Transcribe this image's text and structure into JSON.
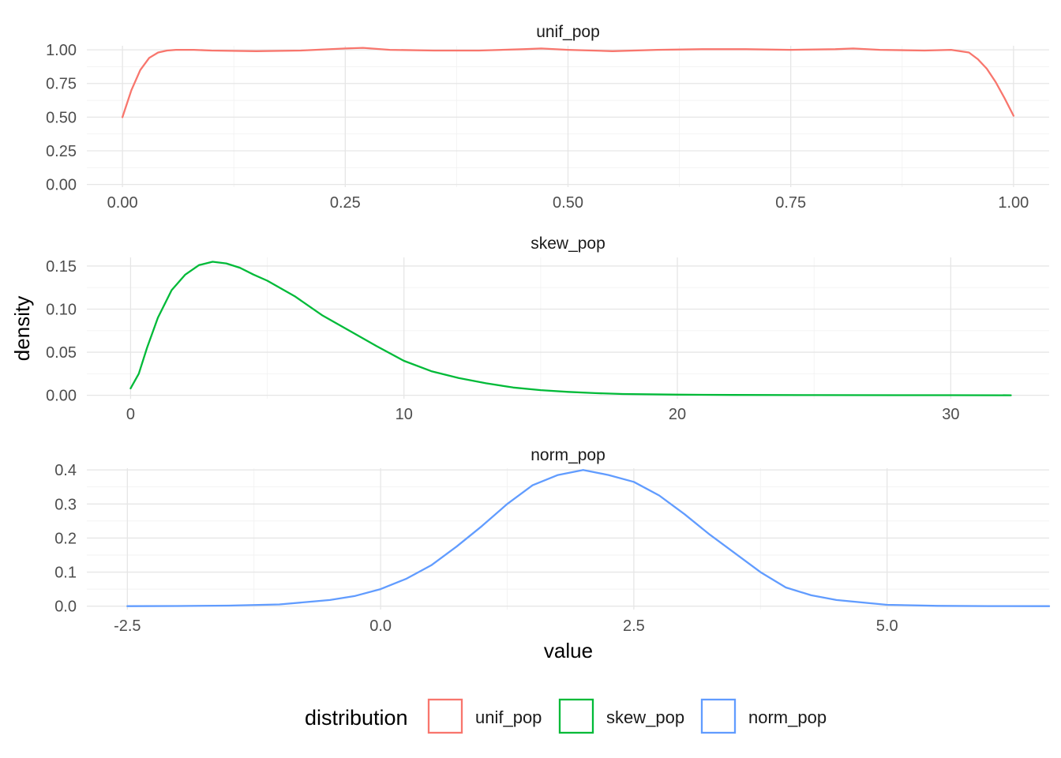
{
  "chart_data": {
    "type": "line",
    "title": "",
    "xlabel": "value",
    "ylabel": "density",
    "legend": {
      "title": "distribution",
      "position": "bottom",
      "entries": [
        {
          "label": "unif_pop",
          "color": "#F8766D"
        },
        {
          "label": "skew_pop",
          "color": "#00BA38"
        },
        {
          "label": "norm_pop",
          "color": "#619CFF"
        }
      ]
    },
    "facets": [
      {
        "name": "unif_pop",
        "color": "#F8766D",
        "xlim": [
          -0.04,
          1.04
        ],
        "ylim": [
          -0.02,
          1.03
        ],
        "x_ticks": [
          0,
          0.25,
          0.5,
          0.75,
          1.0
        ],
        "x_tick_labels": [
          "0.00",
          "0.25",
          "0.50",
          "0.75",
          "1.00"
        ],
        "y_ticks": [
          0,
          0.25,
          0.5,
          0.75,
          1.0
        ],
        "y_tick_labels": [
          "0.00",
          "0.25",
          "0.50",
          "0.75",
          "1.00"
        ],
        "x": [
          0.0,
          0.01,
          0.02,
          0.03,
          0.04,
          0.05,
          0.06,
          0.08,
          0.1,
          0.15,
          0.2,
          0.25,
          0.27,
          0.3,
          0.35,
          0.4,
          0.45,
          0.47,
          0.5,
          0.55,
          0.6,
          0.65,
          0.7,
          0.75,
          0.8,
          0.82,
          0.85,
          0.9,
          0.93,
          0.95,
          0.96,
          0.97,
          0.98,
          0.99,
          1.0
        ],
        "y": [
          0.5,
          0.7,
          0.85,
          0.94,
          0.98,
          0.995,
          1.0,
          1.0,
          0.995,
          0.99,
          0.995,
          1.01,
          1.015,
          1.0,
          0.995,
          0.995,
          1.005,
          1.01,
          1.0,
          0.99,
          1.0,
          1.005,
          1.005,
          1.0,
          1.005,
          1.01,
          1.0,
          0.995,
          1.0,
          0.98,
          0.93,
          0.86,
          0.76,
          0.64,
          0.51
        ]
      },
      {
        "name": "skew_pop",
        "color": "#00BA38",
        "xlim": [
          -1.6,
          33.6
        ],
        "ylim": [
          -0.004,
          0.16
        ],
        "x_ticks": [
          0,
          10,
          20,
          30
        ],
        "x_tick_labels": [
          "0",
          "10",
          "20",
          "30"
        ],
        "y_ticks": [
          0,
          0.05,
          0.1,
          0.15
        ],
        "y_tick_labels": [
          "0.00",
          "0.05",
          "0.10",
          "0.15"
        ],
        "x": [
          0.0,
          0.3,
          0.6,
          1.0,
          1.5,
          2.0,
          2.5,
          3.0,
          3.5,
          4.0,
          4.5,
          5.0,
          6.0,
          7.0,
          8.0,
          9.0,
          10.0,
          11.0,
          12.0,
          13.0,
          14.0,
          15.0,
          16.0,
          17.0,
          18.0,
          20.0,
          22.0,
          25.0,
          28.0,
          30.0,
          32.2
        ],
        "y": [
          0.008,
          0.025,
          0.055,
          0.09,
          0.122,
          0.14,
          0.151,
          0.155,
          0.153,
          0.148,
          0.14,
          0.133,
          0.115,
          0.093,
          0.075,
          0.057,
          0.04,
          0.028,
          0.02,
          0.014,
          0.009,
          0.006,
          0.004,
          0.0025,
          0.0015,
          0.0008,
          0.0004,
          0.0002,
          0.0001,
          0.0001,
          0.0
        ]
      },
      {
        "name": "norm_pop",
        "color": "#619CFF",
        "xlim": [
          -2.9,
          6.6
        ],
        "ylim": [
          -0.01,
          0.405
        ],
        "x_ticks": [
          -2.5,
          0.0,
          2.5,
          5.0
        ],
        "x_tick_labels": [
          "-2.5",
          "0.0",
          "2.5",
          "5.0"
        ],
        "y_ticks": [
          0,
          0.1,
          0.2,
          0.3,
          0.4
        ],
        "y_tick_labels": [
          "0.0",
          "0.1",
          "0.2",
          "0.3",
          "0.4"
        ],
        "x": [
          -2.5,
          -2.0,
          -1.5,
          -1.0,
          -0.5,
          -0.25,
          0.0,
          0.25,
          0.5,
          0.75,
          1.0,
          1.25,
          1.5,
          1.75,
          2.0,
          2.25,
          2.5,
          2.75,
          3.0,
          3.25,
          3.5,
          3.75,
          4.0,
          4.25,
          4.5,
          5.0,
          5.5,
          6.0,
          6.6
        ],
        "y": [
          0.0,
          0.0005,
          0.0015,
          0.005,
          0.018,
          0.03,
          0.05,
          0.08,
          0.12,
          0.175,
          0.235,
          0.3,
          0.355,
          0.385,
          0.4,
          0.385,
          0.365,
          0.325,
          0.27,
          0.21,
          0.155,
          0.1,
          0.055,
          0.032,
          0.018,
          0.004,
          0.001,
          0.0003,
          0.0
        ]
      }
    ]
  }
}
